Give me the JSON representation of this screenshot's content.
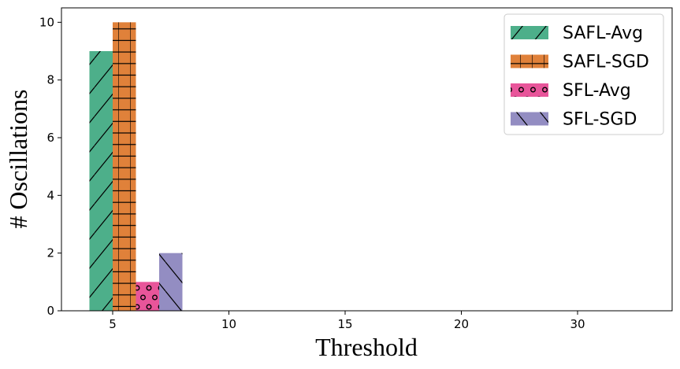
{
  "chart_data": {
    "type": "bar",
    "title": "",
    "xlabel": "Threshold",
    "ylabel": "# Oscillations",
    "categories": [
      "5",
      "10",
      "15",
      "20",
      "30"
    ],
    "ylim": [
      0,
      10.5
    ],
    "yticks": [
      0,
      2,
      4,
      6,
      8,
      10
    ],
    "grid": false,
    "legend_position": "top-right",
    "series": [
      {
        "name": "SAFL-Avg",
        "color": "#4daf8a",
        "hatch": "forward-slash",
        "values": [
          9,
          0,
          0,
          0,
          0
        ]
      },
      {
        "name": "SAFL-SGD",
        "color": "#e0813a",
        "hatch": "grid-plus",
        "values": [
          10,
          0,
          0,
          0,
          0
        ]
      },
      {
        "name": "SFL-Avg",
        "color": "#e8559a",
        "hatch": "circles",
        "values": [
          1,
          0,
          0,
          0,
          0
        ]
      },
      {
        "name": "SFL-SGD",
        "color": "#938dc2",
        "hatch": "back-slash",
        "values": [
          2,
          0,
          0,
          0,
          0
        ]
      }
    ]
  }
}
